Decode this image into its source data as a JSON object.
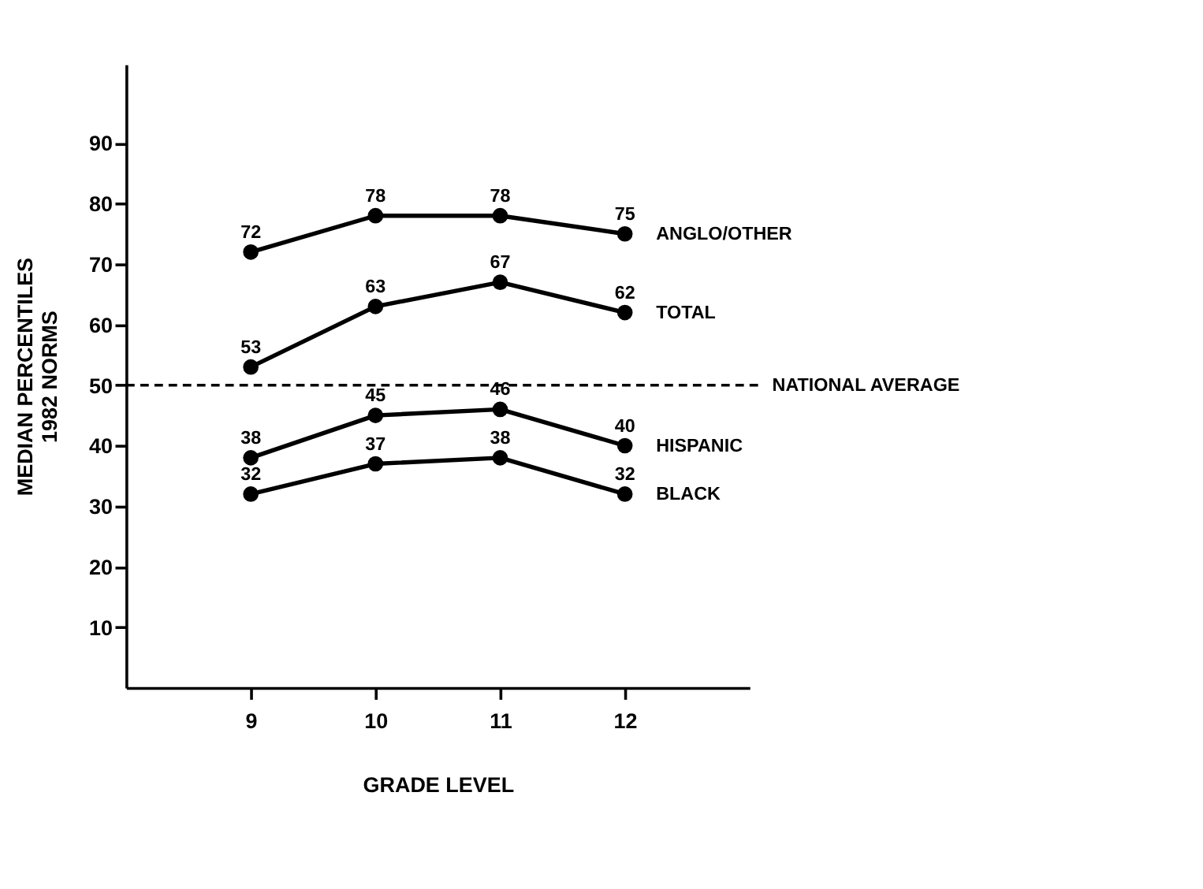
{
  "chart_data": {
    "type": "line",
    "xlabel": "GRADE LEVEL",
    "ylabel": "MEDIAN PERCENTILES\n1982 NORMS",
    "x": [
      9,
      10,
      11,
      12
    ],
    "xlim": [
      8,
      13
    ],
    "xticks": [
      9,
      10,
      11,
      12
    ],
    "ylim": [
      0,
      103
    ],
    "yticks": [
      10,
      20,
      30,
      40,
      50,
      60,
      70,
      80,
      90
    ],
    "series": [
      {
        "name": "ANGLO/OTHER",
        "color": "#000000",
        "values": [
          72,
          78,
          78,
          75
        ]
      },
      {
        "name": "TOTAL",
        "color": "#000000",
        "values": [
          53,
          63,
          67,
          62
        ]
      },
      {
        "name": "HISPANIC",
        "color": "#000000",
        "values": [
          38,
          45,
          46,
          40
        ]
      },
      {
        "name": "BLACK",
        "color": "#000000",
        "values": [
          32,
          37,
          38,
          32
        ]
      }
    ],
    "ref_lines": [
      {
        "axis": "y",
        "value": 50,
        "label": "NATIONAL AVERAGE",
        "line_style": "dashed",
        "color": "#000000"
      }
    ],
    "data_labels": true,
    "marker": "circle",
    "line_style": "solid",
    "grid": false
  }
}
